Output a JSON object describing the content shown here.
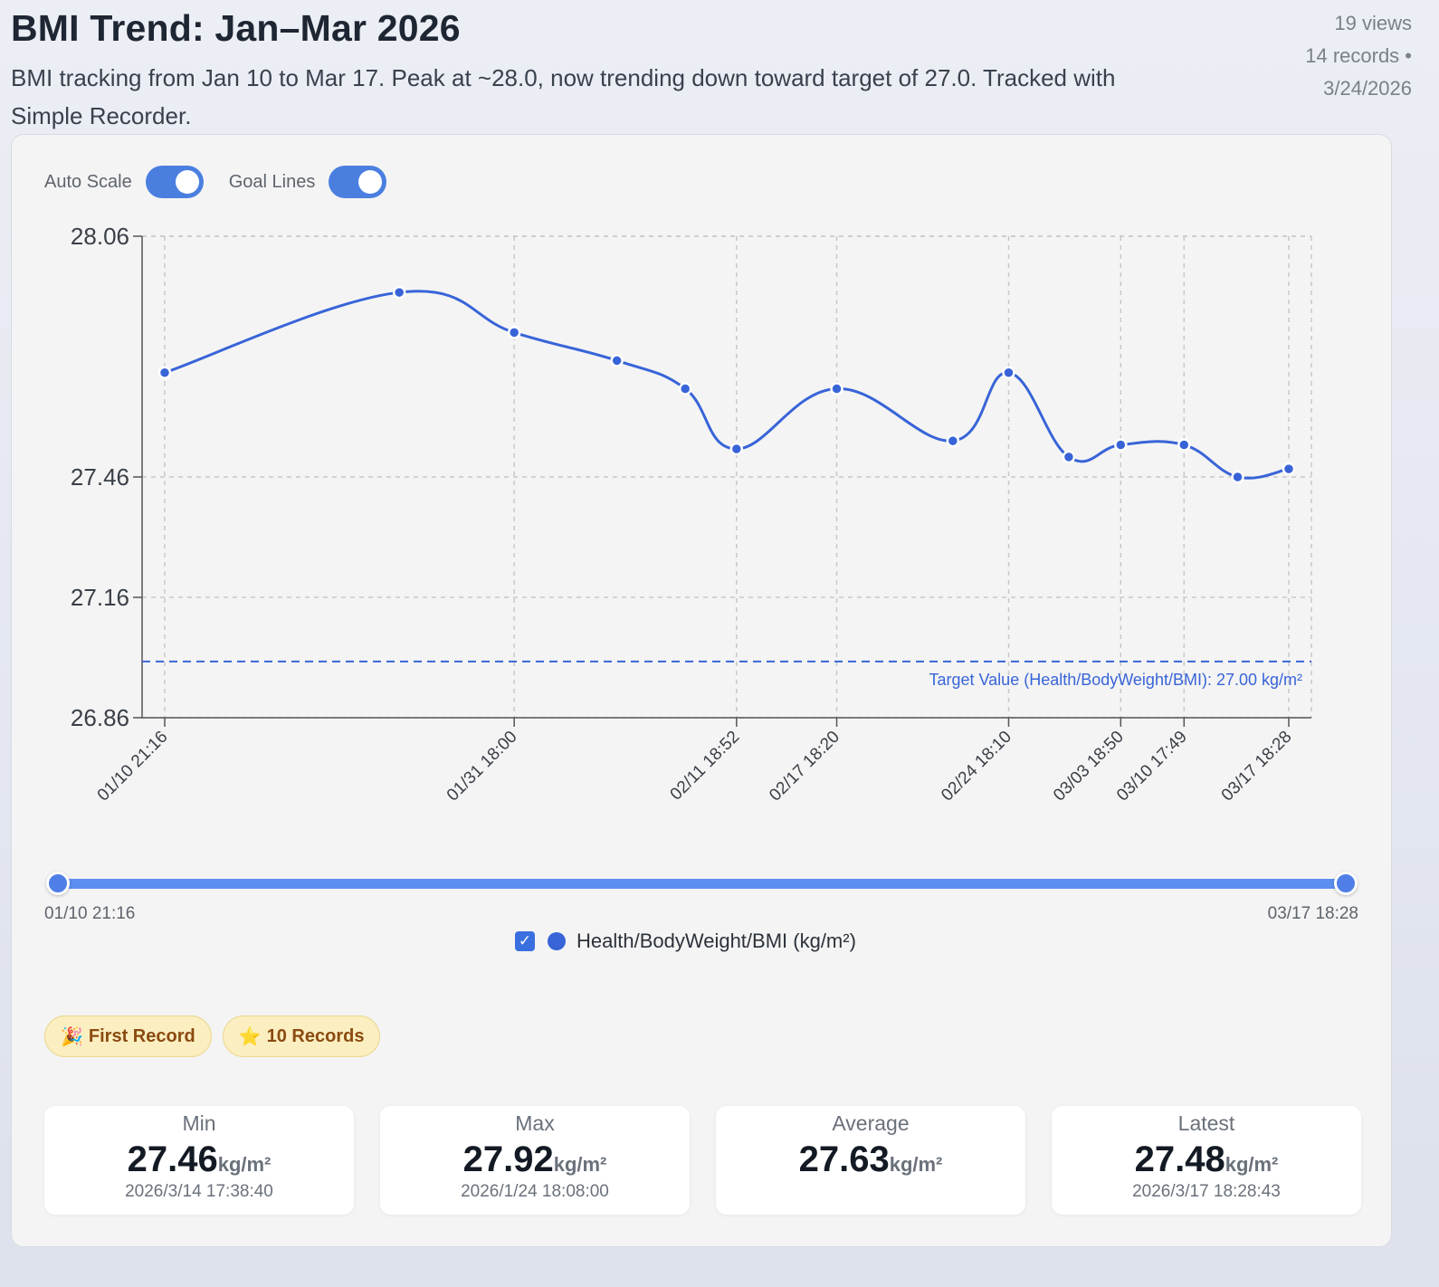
{
  "header": {
    "title": "BMI Trend: Jan–Mar 2026",
    "subtitle": "BMI tracking from Jan 10 to Mar 17. Peak at ~28.0, now trending down toward target of 27.0. Tracked with Simple Recorder."
  },
  "meta": {
    "views": "19 views",
    "records": "14 records •",
    "date": "3/24/2026"
  },
  "toggles": {
    "auto_scale": "Auto Scale",
    "goal_lines": "Goal Lines"
  },
  "chart_data": {
    "type": "line",
    "series_name": "Health/BodyWeight/BMI (kg/m²)",
    "unit": "kg/m²",
    "x_ticks": [
      "01/10 21:16",
      "01/31 18:00",
      "02/11 18:52",
      "02/17 18:20",
      "02/24 18:10",
      "03/03 18:50",
      "03/10 17:49",
      "03/17 18:28"
    ],
    "y_ticks": [
      "28.06",
      "27.46",
      "27.16",
      "26.86"
    ],
    "ylim": [
      26.86,
      28.06
    ],
    "x_days": [
      0,
      14.0,
      20.86,
      26.99,
      31.07,
      34.13,
      40.11,
      47.04,
      50.37,
      53.96,
      57.06,
      60.84,
      64.04,
      67.09
    ],
    "values": [
      27.72,
      27.92,
      27.82,
      27.75,
      27.68,
      27.53,
      27.68,
      27.55,
      27.72,
      27.51,
      27.54,
      27.54,
      27.46,
      27.48
    ],
    "target": {
      "value": 27.0,
      "label": "Target Value (Health/BodyWeight/BMI): 27.00 kg/m²"
    },
    "color": "#3864d8"
  },
  "range": {
    "start": "01/10 21:16",
    "end": "03/17 18:28"
  },
  "legend": {
    "label": "Health/BodyWeight/BMI (kg/m²)"
  },
  "badges": [
    {
      "icon": "🎉",
      "label": "First Record"
    },
    {
      "icon": "⭐",
      "label": "10 Records"
    }
  ],
  "stats": [
    {
      "label": "Min",
      "value": "27.46",
      "unit": "kg/m²",
      "date": "2026/3/14 17:38:40"
    },
    {
      "label": "Max",
      "value": "27.92",
      "unit": "kg/m²",
      "date": "2026/1/24 18:08:00"
    },
    {
      "label": "Average",
      "value": "27.63",
      "unit": "kg/m²",
      "date": ""
    },
    {
      "label": "Latest",
      "value": "27.48",
      "unit": "kg/m²",
      "date": "2026/3/17 18:28:43"
    }
  ]
}
